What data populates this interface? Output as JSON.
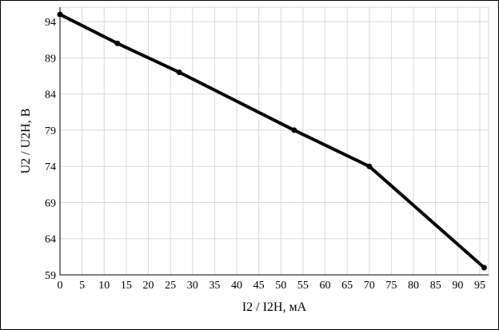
{
  "chart_data": {
    "type": "line",
    "xlabel": "I2 / I2H, мА",
    "ylabel": "U2 / U2H, В",
    "xlim": [
      0,
      97
    ],
    "ylim": [
      59,
      96
    ],
    "xticks": [
      0,
      5,
      10,
      15,
      20,
      25,
      30,
      35,
      40,
      45,
      50,
      55,
      60,
      65,
      70,
      75,
      80,
      85,
      90,
      95
    ],
    "yticks": [
      59,
      64,
      69,
      74,
      79,
      84,
      89,
      94
    ],
    "grid": true,
    "legend": "none",
    "series": [
      {
        "x": [
          0,
          13,
          27,
          53,
          70,
          96
        ],
        "y": [
          95,
          91,
          87,
          79,
          74,
          60
        ]
      }
    ],
    "colors": {
      "line": "#000000",
      "grid": "#d9d9d9"
    }
  }
}
